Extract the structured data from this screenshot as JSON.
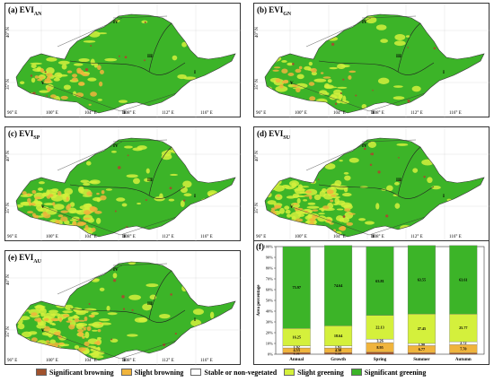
{
  "colors": {
    "sig_browning": "#a0522d",
    "slight_browning": "#f0b43c",
    "stable": "#ffffff",
    "slight_greening": "#d4f03c",
    "sig_greening": "#3cb428"
  },
  "map_panels": [
    {
      "label": "(a) EVI",
      "sub": "AN"
    },
    {
      "label": "(b) EVI",
      "sub": "GN"
    },
    {
      "label": "(c) EVI",
      "sub": "SP"
    },
    {
      "label": "(d) EVI",
      "sub": "SU"
    },
    {
      "label": "(e) EVI",
      "sub": "AU"
    }
  ],
  "lon_ticks": [
    "96° E",
    "100° E",
    "104° E",
    "108° E",
    "112° E",
    "116° E"
  ],
  "lat_ticks": [
    "40° N",
    "35° N"
  ],
  "region_labels": [
    "IV",
    "III",
    "I",
    "V",
    "II"
  ],
  "legend": [
    {
      "label": "Significant browning",
      "color_key": "sig_browning"
    },
    {
      "label": "Slight browning",
      "color_key": "slight_browning"
    },
    {
      "label": "Stable or non-vegetated",
      "color_key": "stable"
    },
    {
      "label": "Slight greening",
      "color_key": "slight_greening"
    },
    {
      "label": "Significant greening",
      "color_key": "sig_greening"
    }
  ],
  "chart_title": "(f)",
  "chart_data": {
    "type": "bar",
    "stacked": true,
    "categories": [
      "Annual",
      "Growth",
      "Spring",
      "Summer",
      "Autumn"
    ],
    "ylabel": "Area percentage",
    "ylim": [
      0,
      100
    ],
    "yticks": [
      "0%",
      "10%",
      "20%",
      "30%",
      "40%",
      "50%",
      "60%",
      "70%",
      "80%",
      "90%",
      "100%"
    ],
    "series": [
      {
        "name": "Significant browning",
        "values": [
          1.31,
          1.31,
          1.84,
          1.24,
          1.18
        ],
        "labels": [
          "1.31",
          "1.31",
          "",
          "",
          ""
        ]
      },
      {
        "name": "Slight browning",
        "values": [
          4.53,
          4.5,
          8.95,
          6.77,
          7.7
        ],
        "labels": [
          "4.53",
          "4.50",
          "8.95",
          "6.77",
          "7.70"
        ]
      },
      {
        "name": "Stable or non-vegetated",
        "values": [
          1.92,
          1.91,
          3.26,
          1.98,
          2.72
        ],
        "labels": [
          "1.92",
          "1.91",
          "3.26",
          "1.98",
          "2.72"
        ]
      },
      {
        "name": "Slight greening",
        "values": [
          16.25,
          18.64,
          22.13,
          27.45,
          25.77
        ],
        "labels": [
          "16.25",
          "18.64",
          "22.13",
          "27.45",
          "25.77"
        ]
      },
      {
        "name": "Significant greening",
        "values": [
          75.97,
          74.64,
          63.81,
          63.55,
          63.61
        ],
        "labels": [
          "75.97",
          "74.64",
          "63.81",
          "63.55",
          "63.61"
        ]
      }
    ]
  }
}
